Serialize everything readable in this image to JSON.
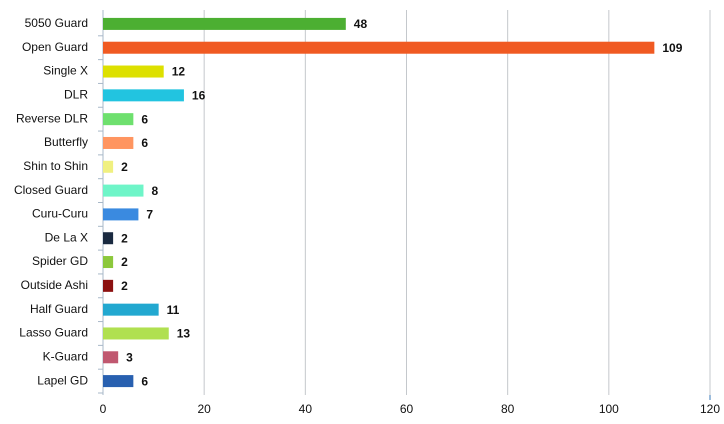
{
  "chart_data": {
    "type": "bar",
    "orientation": "horizontal",
    "categories": [
      "5050 Guard",
      "Open Guard",
      "Single X",
      "DLR",
      "Reverse DLR",
      "Butterfly",
      "Shin to Shin",
      "Closed Guard",
      "Curu-Curu",
      "De La X",
      "Spider GD",
      "Outside Ashi",
      "Half Guard",
      "Lasso Guard",
      "K-Guard",
      "Lapel GD"
    ],
    "values": [
      48,
      109,
      12,
      16,
      6,
      6,
      2,
      8,
      7,
      2,
      2,
      2,
      11,
      13,
      3,
      6
    ],
    "colors": [
      "#4caf32",
      "#f05a22",
      "#dde000",
      "#22c4e0",
      "#6ee06e",
      "#ff9560",
      "#f0f080",
      "#6ef5c8",
      "#3a8ae0",
      "#1a2a40",
      "#8cc83c",
      "#8b1010",
      "#22a8d0",
      "#b0e050",
      "#c05870",
      "#2860b0"
    ],
    "xlim": [
      0,
      120
    ],
    "xticks": [
      0,
      20,
      40,
      60,
      80,
      100,
      120
    ],
    "grid": true
  }
}
